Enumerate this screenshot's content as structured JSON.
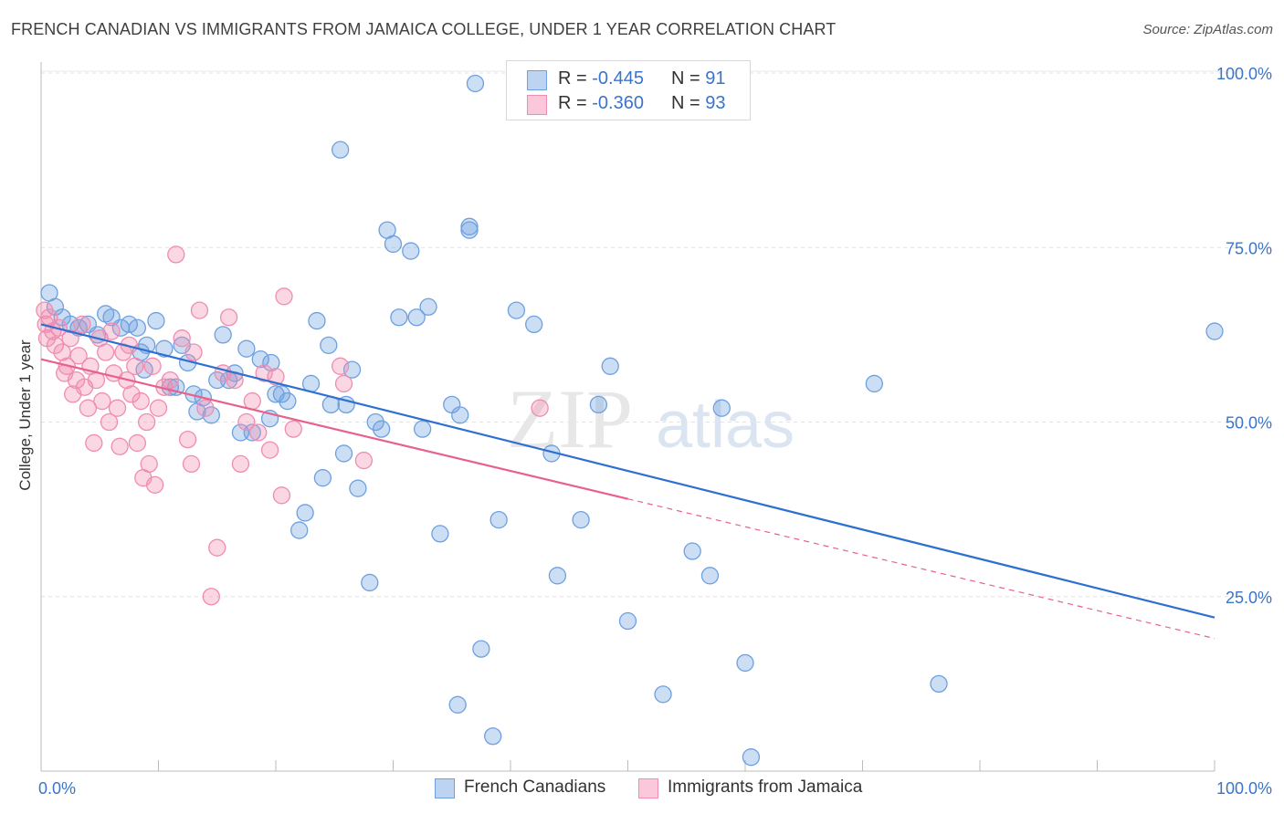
{
  "title": "FRENCH CANADIAN VS IMMIGRANTS FROM JAMAICA COLLEGE, UNDER 1 YEAR CORRELATION CHART",
  "source": "Source: ZipAtlas.com",
  "watermark": {
    "zip": "ZIP",
    "atlas": "atlas"
  },
  "legend_top": {
    "r_label": "R =",
    "n_label": "N =",
    "rows": [
      {
        "r": "-0.445",
        "n": "91",
        "color": "#6ea0e0"
      },
      {
        "r": "-0.360",
        "n": "93",
        "color": "#f08cb0"
      }
    ]
  },
  "legend_bottom": [
    "French Canadians",
    "Immigrants from Jamaica"
  ],
  "chart_data": {
    "type": "scatter",
    "title": "FRENCH CANADIAN VS IMMIGRANTS FROM JAMAICA COLLEGE, UNDER 1 YEAR CORRELATION CHART",
    "xlabel": "",
    "ylabel": "College, Under 1 year",
    "xlim": [
      0,
      100
    ],
    "ylim": [
      0,
      103
    ],
    "x_tick_labels": [
      "0.0%",
      "100.0%"
    ],
    "y_ticks": [
      25,
      50,
      75,
      100
    ],
    "y_tick_labels": [
      "25.0%",
      "50.0%",
      "75.0%",
      "100.0%"
    ],
    "grid": true,
    "legend_position": "top-center",
    "series": [
      {
        "name": "French Canadians",
        "color": "#6ea0e0",
        "line_color": "#2f6fd0",
        "trend": {
          "x0": 0,
          "y0": 64,
          "x1": 100,
          "y1": 22
        },
        "points": [
          [
            0.7,
            68.5
          ],
          [
            1.2,
            66.5
          ],
          [
            1.8,
            65
          ],
          [
            2.5,
            64
          ],
          [
            3.2,
            63.5
          ],
          [
            4.0,
            64
          ],
          [
            4.8,
            62.5
          ],
          [
            5.5,
            65.5
          ],
          [
            6.0,
            65
          ],
          [
            6.8,
            63.5
          ],
          [
            7.5,
            64
          ],
          [
            8.2,
            63.5
          ],
          [
            8.5,
            60
          ],
          [
            8.8,
            57.5
          ],
          [
            9.0,
            61
          ],
          [
            9.8,
            64.5
          ],
          [
            10.5,
            60.5
          ],
          [
            11.0,
            55
          ],
          [
            11.5,
            55
          ],
          [
            12.0,
            61
          ],
          [
            12.5,
            58.5
          ],
          [
            13.0,
            54
          ],
          [
            13.3,
            51.5
          ],
          [
            13.8,
            53.5
          ],
          [
            14.5,
            51
          ],
          [
            15.0,
            56
          ],
          [
            15.5,
            62.5
          ],
          [
            16.0,
            56
          ],
          [
            16.5,
            57
          ],
          [
            17.0,
            48.5
          ],
          [
            17.5,
            60.5
          ],
          [
            18.0,
            48.5
          ],
          [
            18.7,
            59
          ],
          [
            19.5,
            50.5
          ],
          [
            19.6,
            58.5
          ],
          [
            20.0,
            54
          ],
          [
            20.5,
            54
          ],
          [
            21.0,
            53
          ],
          [
            22.0,
            34.5
          ],
          [
            22.5,
            37
          ],
          [
            23.0,
            55.5
          ],
          [
            23.5,
            64.5
          ],
          [
            24.0,
            42
          ],
          [
            24.5,
            61
          ],
          [
            24.7,
            52.5
          ],
          [
            25.5,
            89
          ],
          [
            25.8,
            45.5
          ],
          [
            26.0,
            52.5
          ],
          [
            26.5,
            57.5
          ],
          [
            27.0,
            40.5
          ],
          [
            28.0,
            27
          ],
          [
            28.5,
            50
          ],
          [
            29.0,
            49
          ],
          [
            29.5,
            77.5
          ],
          [
            30.0,
            75.5
          ],
          [
            30.5,
            65
          ],
          [
            31.5,
            74.5
          ],
          [
            32.0,
            65
          ],
          [
            32.5,
            49
          ],
          [
            33.0,
            66.5
          ],
          [
            34.0,
            34
          ],
          [
            35.0,
            52.5
          ],
          [
            35.5,
            9.5
          ],
          [
            35.7,
            51
          ],
          [
            36.5,
            78
          ],
          [
            36.5,
            77.5
          ],
          [
            37.0,
            98.5
          ],
          [
            37.5,
            17.5
          ],
          [
            38.5,
            5
          ],
          [
            39.0,
            36
          ],
          [
            40.5,
            66
          ],
          [
            42.0,
            64
          ],
          [
            43.5,
            45.5
          ],
          [
            44.0,
            28
          ],
          [
            46.0,
            36
          ],
          [
            47.5,
            52.5
          ],
          [
            48.5,
            58
          ],
          [
            50.0,
            21.5
          ],
          [
            53.0,
            11
          ],
          [
            55.5,
            31.5
          ],
          [
            57.0,
            28
          ],
          [
            58.0,
            52
          ],
          [
            60.0,
            15.5
          ],
          [
            60.5,
            2
          ],
          [
            71.0,
            55.5
          ],
          [
            76.5,
            12.5
          ],
          [
            100.0,
            63
          ]
        ]
      },
      {
        "name": "Immigrants from Jamaica",
        "color": "#f08cb0",
        "line_color": "#e8608c",
        "trend": {
          "x0": 0,
          "y0": 59,
          "x1": 50,
          "y1": 39
        },
        "trend_dashed": {
          "x0": 50,
          "y0": 39,
          "x1": 100,
          "y1": 19
        },
        "points": [
          [
            0.3,
            66
          ],
          [
            0.4,
            64
          ],
          [
            0.5,
            62
          ],
          [
            0.7,
            65
          ],
          [
            1.0,
            63
          ],
          [
            1.2,
            61
          ],
          [
            1.5,
            63.5
          ],
          [
            1.8,
            60
          ],
          [
            2.0,
            57
          ],
          [
            2.2,
            58
          ],
          [
            2.5,
            62
          ],
          [
            2.7,
            54
          ],
          [
            3.0,
            56
          ],
          [
            3.2,
            59.5
          ],
          [
            3.5,
            64
          ],
          [
            3.7,
            55
          ],
          [
            4.0,
            52
          ],
          [
            4.2,
            58
          ],
          [
            4.5,
            47
          ],
          [
            4.7,
            56
          ],
          [
            5.0,
            62
          ],
          [
            5.2,
            53
          ],
          [
            5.5,
            60
          ],
          [
            5.8,
            50
          ],
          [
            6.0,
            63
          ],
          [
            6.2,
            57
          ],
          [
            6.5,
            52
          ],
          [
            6.7,
            46.5
          ],
          [
            7.0,
            60
          ],
          [
            7.3,
            56
          ],
          [
            7.5,
            61
          ],
          [
            7.7,
            54
          ],
          [
            8.0,
            58
          ],
          [
            8.2,
            47
          ],
          [
            8.5,
            53
          ],
          [
            8.7,
            42
          ],
          [
            9.0,
            50
          ],
          [
            9.2,
            44
          ],
          [
            9.5,
            58
          ],
          [
            9.7,
            41
          ],
          [
            10.0,
            52
          ],
          [
            10.5,
            55
          ],
          [
            11.0,
            56
          ],
          [
            11.5,
            74
          ],
          [
            12.0,
            62
          ],
          [
            12.5,
            47.5
          ],
          [
            12.8,
            44
          ],
          [
            13.0,
            60
          ],
          [
            13.5,
            66
          ],
          [
            14.0,
            52
          ],
          [
            14.5,
            25
          ],
          [
            15.0,
            32
          ],
          [
            15.5,
            57
          ],
          [
            16.0,
            65
          ],
          [
            16.5,
            56
          ],
          [
            17.0,
            44
          ],
          [
            17.5,
            50
          ],
          [
            18.0,
            53
          ],
          [
            18.5,
            48.5
          ],
          [
            19.0,
            57
          ],
          [
            19.5,
            46
          ],
          [
            20.0,
            56.5
          ],
          [
            20.5,
            39.5
          ],
          [
            20.7,
            68
          ],
          [
            21.5,
            49
          ],
          [
            25.5,
            58
          ],
          [
            25.8,
            55.5
          ],
          [
            27.5,
            44.5
          ],
          [
            42.5,
            52
          ]
        ]
      }
    ]
  }
}
